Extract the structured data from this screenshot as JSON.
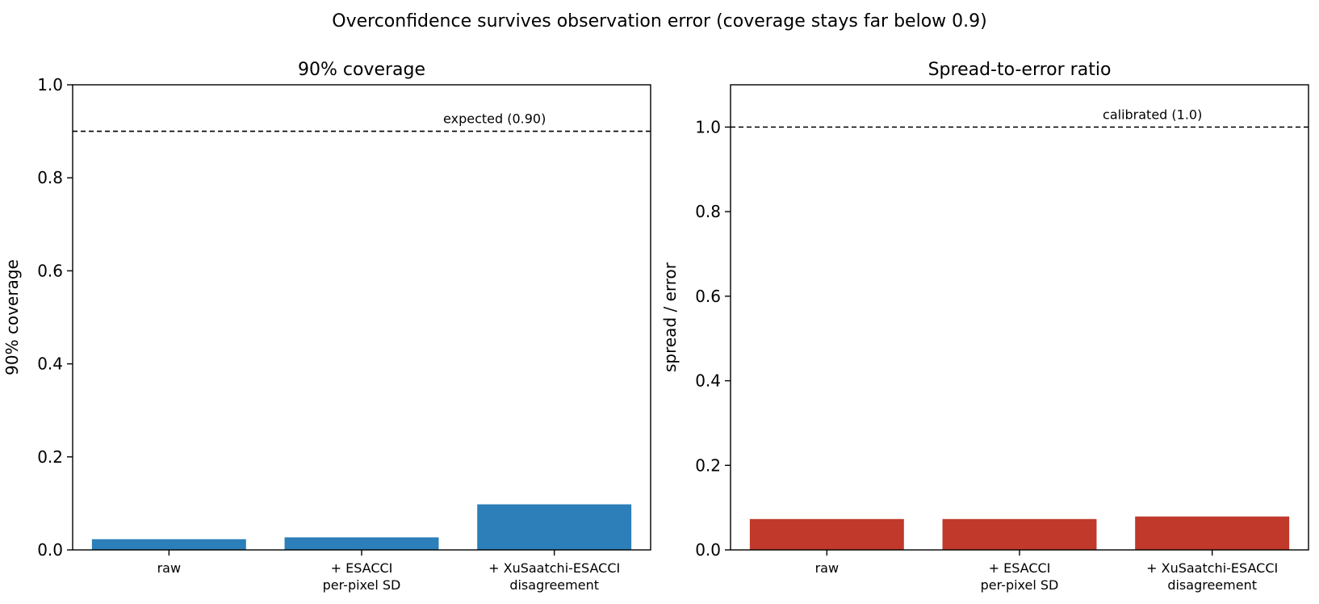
{
  "figure": {
    "suptitle": "Overconfidence survives observation error (coverage stays far below 0.9)"
  },
  "chart_data": [
    {
      "type": "bar",
      "title": "90% coverage",
      "xlabel": "",
      "ylabel": "90% coverage",
      "ylim": [
        0,
        1.0
      ],
      "yticks": [
        "0.0",
        "0.2",
        "0.4",
        "0.6",
        "0.8",
        "1.0"
      ],
      "ytick_values": [
        0,
        0.2,
        0.4,
        0.6,
        0.8,
        1.0
      ],
      "categories": [
        [
          "raw"
        ],
        [
          "+ ESACCI",
          "per-pixel SD"
        ],
        [
          "+ XuSaatchi-ESACCI",
          "disagreement"
        ]
      ],
      "values": [
        0.023,
        0.027,
        0.098
      ],
      "bar_color": "#2c7fb8",
      "reference_line": {
        "value": 0.9,
        "label": "expected (0.90)",
        "style": "dashed"
      },
      "grid": false
    },
    {
      "type": "bar",
      "title": "Spread-to-error ratio",
      "xlabel": "",
      "ylabel": "spread / error",
      "ylim": [
        0,
        1.1
      ],
      "yticks": [
        "0.0",
        "0.2",
        "0.4",
        "0.6",
        "0.8",
        "1.0"
      ],
      "ytick_values": [
        0,
        0.2,
        0.4,
        0.6,
        0.8,
        1.0
      ],
      "categories": [
        [
          "raw"
        ],
        [
          "+ ESACCI",
          "per-pixel SD"
        ],
        [
          "+ XuSaatchi-ESACCI",
          "disagreement"
        ]
      ],
      "values": [
        0.073,
        0.073,
        0.079
      ],
      "bar_color": "#c0392b",
      "reference_line": {
        "value": 1.0,
        "label": "calibrated (1.0)",
        "style": "dashed"
      },
      "grid": false
    }
  ]
}
